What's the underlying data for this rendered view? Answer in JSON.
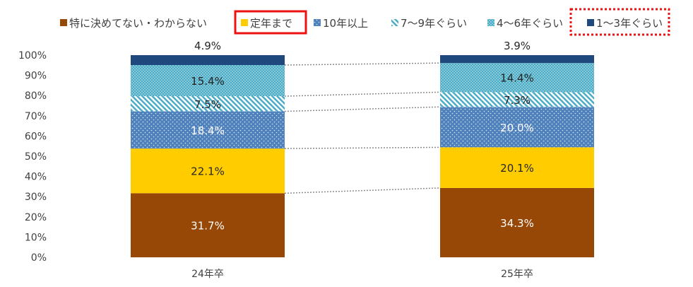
{
  "chart_data": {
    "type": "bar",
    "stacked": true,
    "percent": true,
    "categories": [
      "24年卒",
      "25年卒"
    ],
    "ylim": [
      0,
      100
    ],
    "yticks": [
      "0%",
      "10%",
      "20%",
      "30%",
      "40%",
      "50%",
      "60%",
      "70%",
      "80%",
      "90%",
      "100%"
    ],
    "series": [
      {
        "name": "特に決めてない・わからない",
        "values": [
          31.7,
          34.3
        ],
        "labels": [
          "31.7%",
          "34.3%"
        ],
        "color": "#974806",
        "pattern": "solid",
        "label_color": "#ffffff"
      },
      {
        "name": "定年まで",
        "values": [
          22.1,
          20.1
        ],
        "labels": [
          "22.1%",
          "20.1%"
        ],
        "color": "#ffcc00",
        "pattern": "solid",
        "label_color": "#262626"
      },
      {
        "name": "10年以上",
        "values": [
          18.4,
          20.0
        ],
        "labels": [
          "18.4%",
          "20.0%"
        ],
        "color": "#4f81bd",
        "pattern": "dots",
        "label_color": "#ffffff"
      },
      {
        "name": "7～9年ぐらい",
        "values": [
          7.5,
          7.3
        ],
        "labels": [
          "7.5%",
          "7.3%"
        ],
        "color": "#4bacc6",
        "pattern": "diagonal",
        "label_color": "#262626"
      },
      {
        "name": "4～6年ぐらい",
        "values": [
          15.4,
          14.4
        ],
        "labels": [
          "15.4%",
          "14.4%"
        ],
        "color": "#4bacc6",
        "pattern": "dense-dots",
        "label_color": "#262626"
      },
      {
        "name": "1～3年ぐらい",
        "values": [
          4.9,
          3.9
        ],
        "labels": [
          "4.9%",
          "3.9%"
        ],
        "color": "#1f497d",
        "pattern": "solid",
        "label_color": "#262626"
      }
    ],
    "highlights": {
      "solid_box": "定年まで",
      "dotted_box": "1～3年ぐらい",
      "box_color": "#ee1111"
    },
    "legend_position": "top",
    "connector_lines": true,
    "gridlines": false
  }
}
